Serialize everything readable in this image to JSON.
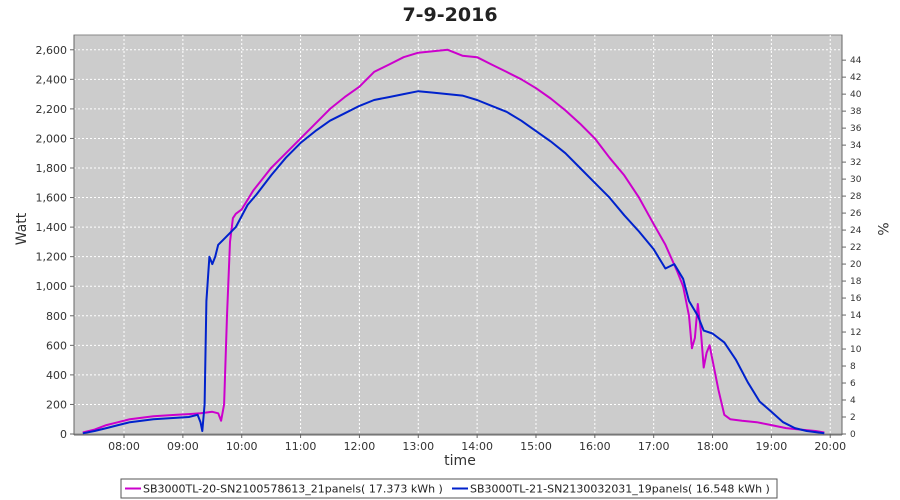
{
  "chart_data": {
    "type": "line",
    "title": "7-9-2016",
    "xlabel": "time",
    "ylabel": "Watt",
    "y2label": "%",
    "x_ticks": [
      "08:00",
      "09:00",
      "10:00",
      "11:00",
      "12:00",
      "13:00",
      "14:00",
      "15:00",
      "16:00",
      "17:00",
      "18:00",
      "19:00",
      "20:00"
    ],
    "xlim": [
      7.15,
      20.2
    ],
    "ylim": [
      0,
      2700
    ],
    "y_ticks": [
      0,
      200,
      400,
      600,
      800,
      1000,
      1200,
      1400,
      1600,
      1800,
      2000,
      2200,
      2400,
      2600
    ],
    "y2lim": [
      0,
      46.96
    ],
    "y2_ticks": [
      0,
      2,
      4,
      6,
      8,
      10,
      12,
      14,
      16,
      18,
      20,
      22,
      24,
      26,
      28,
      30,
      32,
      34,
      36,
      38,
      40,
      42,
      44
    ],
    "grid": true,
    "legend": "bottom",
    "plot_background": "#cccccc",
    "series": [
      {
        "name": "SB3000TL-20-SN2100578613_21panels( 17.373 kWh )",
        "color": "#cc00cc",
        "x": [
          7.3,
          7.5,
          7.7,
          7.9,
          8.1,
          8.3,
          8.5,
          8.7,
          8.9,
          9.1,
          9.3,
          9.5,
          9.6,
          9.65,
          9.7,
          9.75,
          9.8,
          9.85,
          9.9,
          10.0,
          10.2,
          10.5,
          10.75,
          11.0,
          11.25,
          11.5,
          11.75,
          12.0,
          12.25,
          12.5,
          12.75,
          13.0,
          13.25,
          13.5,
          13.75,
          14.0,
          14.25,
          14.5,
          14.75,
          15.0,
          15.25,
          15.5,
          15.75,
          16.0,
          16.25,
          16.5,
          16.75,
          17.0,
          17.2,
          17.4,
          17.5,
          17.6,
          17.65,
          17.7,
          17.75,
          17.8,
          17.85,
          17.9,
          17.95,
          18.0,
          18.1,
          18.2,
          18.3,
          18.5,
          18.75,
          19.0,
          19.25,
          19.5,
          19.75,
          19.9
        ],
        "y": [
          10,
          30,
          60,
          80,
          100,
          110,
          120,
          125,
          130,
          135,
          140,
          150,
          140,
          90,
          200,
          800,
          1300,
          1460,
          1490,
          1520,
          1650,
          1800,
          1900,
          2000,
          2100,
          2200,
          2280,
          2350,
          2450,
          2500,
          2550,
          2580,
          2590,
          2600,
          2560,
          2550,
          2500,
          2450,
          2400,
          2340,
          2270,
          2190,
          2100,
          2000,
          1870,
          1750,
          1600,
          1420,
          1280,
          1100,
          1000,
          800,
          580,
          650,
          880,
          700,
          450,
          550,
          600,
          500,
          300,
          130,
          100,
          90,
          80,
          60,
          40,
          30,
          20,
          10
        ]
      },
      {
        "name": "SB3000TL-21-SN2130032031_19panels( 16.548 kWh )",
        "color": "#0022cc",
        "x": [
          7.3,
          7.5,
          7.7,
          7.9,
          8.1,
          8.3,
          8.5,
          8.7,
          8.9,
          9.1,
          9.25,
          9.3,
          9.33,
          9.37,
          9.4,
          9.45,
          9.5,
          9.55,
          9.6,
          9.7,
          9.9,
          10.1,
          10.25,
          10.5,
          10.75,
          11.0,
          11.25,
          11.5,
          11.75,
          12.0,
          12.25,
          12.5,
          12.75,
          13.0,
          13.25,
          13.5,
          13.75,
          14.0,
          14.25,
          14.5,
          14.75,
          15.0,
          15.25,
          15.5,
          15.75,
          16.0,
          16.25,
          16.5,
          16.75,
          17.0,
          17.2,
          17.35,
          17.5,
          17.6,
          17.75,
          17.85,
          18.0,
          18.2,
          18.4,
          18.6,
          18.8,
          19.0,
          19.2,
          19.4,
          19.6,
          19.8,
          19.9
        ],
        "y": [
          5,
          20,
          40,
          60,
          80,
          90,
          100,
          105,
          110,
          115,
          130,
          80,
          20,
          200,
          900,
          1200,
          1150,
          1200,
          1280,
          1320,
          1400,
          1550,
          1620,
          1750,
          1870,
          1970,
          2050,
          2120,
          2170,
          2220,
          2260,
          2280,
          2300,
          2320,
          2310,
          2300,
          2290,
          2260,
          2220,
          2180,
          2120,
          2050,
          1980,
          1900,
          1800,
          1700,
          1600,
          1480,
          1370,
          1250,
          1120,
          1150,
          1050,
          900,
          800,
          700,
          680,
          620,
          500,
          350,
          220,
          150,
          80,
          40,
          20,
          10,
          5
        ]
      }
    ]
  }
}
